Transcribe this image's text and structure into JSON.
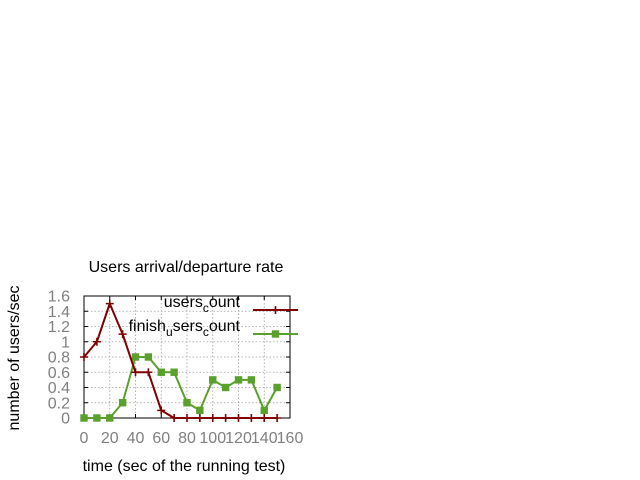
{
  "chart_data": {
    "type": "line",
    "title": "Users arrival/departure rate",
    "xlabel": "time (sec of the running test)",
    "ylabel": "number of users/sec",
    "xlim": [
      0,
      160
    ],
    "ylim": [
      0,
      1.6
    ],
    "xticks": [
      0,
      20,
      40,
      60,
      80,
      100,
      120,
      140,
      160
    ],
    "yticks": [
      0,
      0.2,
      0.4,
      0.6,
      0.8,
      1,
      1.2,
      1.4,
      1.6
    ],
    "grid": true,
    "legend_position": "top-right",
    "series": [
      {
        "name": "users_count",
        "legend_parts": [
          {
            "text": "users",
            "sub": false
          },
          {
            "text": "c",
            "sub": true
          },
          {
            "text": "ount",
            "sub": false
          }
        ],
        "color": "#800000",
        "marker": "plus",
        "x": [
          0,
          10,
          20,
          30,
          40,
          50,
          60,
          70,
          80,
          90,
          100,
          110,
          120,
          130,
          140,
          150
        ],
        "y": [
          0.8,
          1.0,
          1.5,
          1.1,
          0.6,
          0.6,
          0.1,
          0,
          0,
          0,
          0,
          0,
          0,
          0,
          0,
          0
        ]
      },
      {
        "name": "finish_users_count",
        "legend_parts": [
          {
            "text": "finish",
            "sub": false
          },
          {
            "text": "u",
            "sub": true
          },
          {
            "text": "sers",
            "sub": false
          },
          {
            "text": "c",
            "sub": true
          },
          {
            "text": "ount",
            "sub": false
          }
        ],
        "color": "#5aa02c",
        "marker": "square",
        "x": [
          0,
          10,
          20,
          30,
          40,
          50,
          60,
          70,
          80,
          90,
          100,
          110,
          120,
          130,
          140,
          150
        ],
        "y": [
          0,
          0,
          0,
          0.2,
          0.8,
          0.8,
          0.6,
          0.6,
          0.2,
          0.1,
          0.5,
          0.4,
          0.5,
          0.5,
          0.1,
          0.4
        ]
      }
    ]
  }
}
